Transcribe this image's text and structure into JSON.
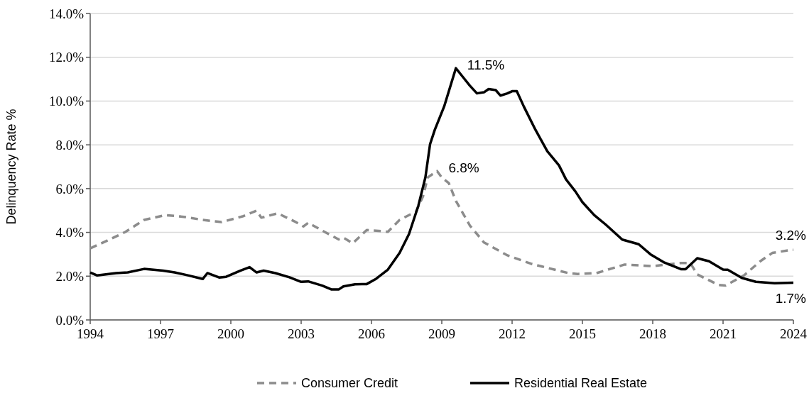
{
  "chart_data": {
    "type": "line",
    "ylabel": "Delinquency Rate %",
    "xlim": [
      1994,
      2024
    ],
    "xticks": [
      1994,
      1997,
      2000,
      2003,
      2006,
      2009,
      2012,
      2015,
      2018,
      2021,
      2024
    ],
    "ylim": [
      0,
      14
    ],
    "yticks": [
      {
        "value": 0,
        "label": "0.0%"
      },
      {
        "value": 2,
        "label": "2.0%"
      },
      {
        "value": 4,
        "label": "4.0%"
      },
      {
        "value": 6,
        "label": "6.0%"
      },
      {
        "value": 8,
        "label": "8.0%"
      },
      {
        "value": 10,
        "label": "10.0%"
      },
      {
        "value": 12,
        "label": "12.0%"
      },
      {
        "value": 14,
        "label": "14.0%"
      }
    ],
    "grid": "y",
    "legend": "bottom",
    "series": [
      {
        "name": "Consumer Credit",
        "color": "#8c8c8c",
        "line_style": "dashed",
        "x": [
          1994,
          1994.8,
          1995.5,
          1996.3,
          1997.2,
          1998,
          1998.8,
          1999.6,
          2000.5,
          2001.1,
          2001.3,
          2002,
          2002.7,
          2003.1,
          2003.3,
          2003.9,
          2004.6,
          2004.8,
          2005.2,
          2005.8,
          2006.7,
          2007.2,
          2007.9,
          2008.2,
          2008.4,
          2008.8,
          2009,
          2009.3,
          2009.6,
          2010.2,
          2010.8,
          2011.8,
          2012.8,
          2013.8,
          2014.4,
          2014.8,
          2015.6,
          2016.8,
          2018,
          2019.2,
          2019.6,
          2019.9,
          2020.8,
          2021.1,
          2021.9,
          2022.6,
          2023.1,
          2023.9,
          2024
        ],
        "values": [
          3.27,
          3.66,
          4.02,
          4.57,
          4.79,
          4.71,
          4.57,
          4.47,
          4.73,
          4.99,
          4.67,
          4.87,
          4.51,
          4.27,
          4.44,
          4.08,
          3.68,
          3.76,
          3.5,
          4.11,
          4.03,
          4.57,
          4.95,
          5.65,
          6.51,
          6.8,
          6.51,
          6.25,
          5.44,
          4.31,
          3.54,
          2.95,
          2.57,
          2.3,
          2.14,
          2.1,
          2.14,
          2.53,
          2.46,
          2.6,
          2.6,
          2.08,
          1.6,
          1.57,
          2.04,
          2.69,
          3.06,
          3.2,
          3.2
        ]
      },
      {
        "name": "Residential Real Estate",
        "color": "#000000",
        "line_style": "solid",
        "x": [
          1994,
          1994.3,
          1995.1,
          1995.6,
          1996.3,
          1997.1,
          1997.6,
          1998.2,
          1998.8,
          1999,
          1999.5,
          1999.8,
          2000.4,
          2000.8,
          2001.1,
          2001.4,
          2001.9,
          2002.5,
          2003,
          2003.3,
          2003.9,
          2004.3,
          2004.6,
          2004.8,
          2005.3,
          2005.8,
          2006.2,
          2006.7,
          2007.2,
          2007.6,
          2008,
          2008.3,
          2008.5,
          2008.7,
          2009.1,
          2009.6,
          2009.9,
          2010.2,
          2010.5,
          2010.8,
          2011,
          2011.3,
          2011.5,
          2011.8,
          2012,
          2012.2,
          2012.5,
          2013,
          2013.5,
          2014,
          2014.3,
          2014.7,
          2015,
          2015.5,
          2016,
          2016.7,
          2017.4,
          2017.9,
          2018.5,
          2019.2,
          2019.4,
          2019.9,
          2020.4,
          2021,
          2021.2,
          2021.8,
          2022.4,
          2023.2,
          2024
        ],
        "values": [
          2.17,
          2.03,
          2.14,
          2.17,
          2.33,
          2.25,
          2.17,
          2.03,
          1.87,
          2.14,
          1.94,
          1.97,
          2.25,
          2.41,
          2.17,
          2.25,
          2.14,
          1.95,
          1.74,
          1.76,
          1.57,
          1.39,
          1.39,
          1.53,
          1.63,
          1.64,
          1.88,
          2.3,
          3.06,
          3.92,
          5.22,
          6.51,
          8.03,
          8.68,
          9.75,
          11.5,
          11.1,
          10.7,
          10.35,
          10.4,
          10.55,
          10.5,
          10.25,
          10.35,
          10.45,
          10.45,
          9.75,
          8.68,
          7.71,
          7.06,
          6.42,
          5.87,
          5.38,
          4.79,
          4.35,
          3.67,
          3.46,
          3.0,
          2.62,
          2.32,
          2.32,
          2.82,
          2.68,
          2.3,
          2.29,
          1.92,
          1.74,
          1.68,
          1.7
        ]
      }
    ],
    "annotations": [
      {
        "text": "11.5%",
        "x": 2009.6,
        "y": 11.5
      },
      {
        "text": "6.8%",
        "x": 2008.8,
        "y": 6.8
      },
      {
        "text": "3.2%",
        "x": 2024,
        "y": 3.2
      },
      {
        "text": "1.7%",
        "x": 2024,
        "y": 1.7
      }
    ]
  }
}
